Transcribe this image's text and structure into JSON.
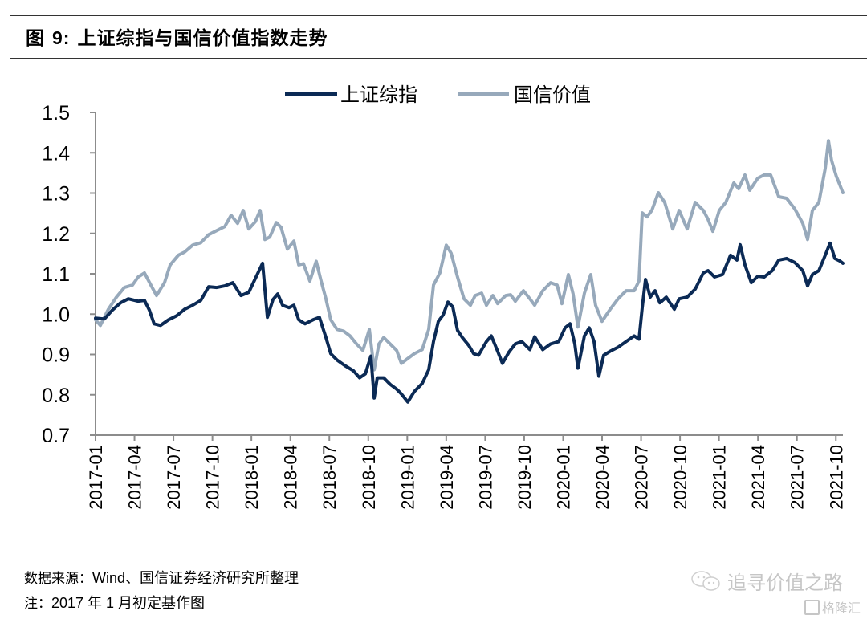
{
  "figure": {
    "title_prefix": "图",
    "title_number": "9:",
    "title_text": "上证综指与国信价值指数走势"
  },
  "footer": {
    "source_label": "数据来源：",
    "source_text": "Wind、国信证券经济研究所整理",
    "note_label": "注：",
    "note_text": "2017 年 1 月初定基作图"
  },
  "watermark": {
    "wechat_text": "追寻价值之路",
    "brand_text": "格隆汇"
  },
  "icons": {
    "wechat": "wechat-icon",
    "brand": "gelonghui-logo-icon"
  },
  "colors": {
    "sse": "#0b2a55",
    "guoxin": "#97a9bb",
    "axis": "#8c8c8c"
  },
  "chart_data": {
    "type": "line",
    "title": "上证综指与国信价值指数走势",
    "xlabel": "",
    "ylabel": "",
    "x_unit": "months since 2017-01",
    "xlim": [
      0,
      57.5
    ],
    "ylim": [
      0.7,
      1.5
    ],
    "yticks": [
      "1.5",
      "1.4",
      "1.3",
      "1.2",
      "1.1",
      "1.0",
      "0.9",
      "0.8",
      "0.7"
    ],
    "ytick_values": [
      1.5,
      1.4,
      1.3,
      1.2,
      1.1,
      1.0,
      0.9,
      0.8,
      0.7
    ],
    "xticks": [
      "2017-01",
      "2017-04",
      "2017-07",
      "2017-10",
      "2018-01",
      "2018-04",
      "2018-07",
      "2018-10",
      "2019-01",
      "2019-04",
      "2019-07",
      "2019-10",
      "2020-01",
      "2020-04",
      "2020-07",
      "2020-10",
      "2021-01",
      "2021-04",
      "2021-07",
      "2021-10"
    ],
    "xtick_values": [
      0,
      3,
      6,
      9,
      12,
      15,
      18,
      21,
      24,
      27,
      30,
      33,
      36,
      39,
      42,
      45,
      48,
      51,
      54,
      57
    ],
    "grid": false,
    "legend_position": "top-center",
    "series": [
      {
        "name": "上证综指",
        "color": "#0b2a55",
        "points": [
          [
            0,
            0.99
          ],
          [
            0.68,
            0.988
          ],
          [
            1.3,
            1.01
          ],
          [
            1.92,
            1.028
          ],
          [
            2.53,
            1.038
          ],
          [
            3.28,
            1.032
          ],
          [
            3.77,
            1.034
          ],
          [
            4.14,
            1.01
          ],
          [
            4.51,
            0.976
          ],
          [
            5.0,
            0.972
          ],
          [
            5.62,
            0.986
          ],
          [
            6.24,
            0.996
          ],
          [
            6.86,
            1.012
          ],
          [
            7.48,
            1.022
          ],
          [
            8.1,
            1.034
          ],
          [
            8.71,
            1.068
          ],
          [
            9.33,
            1.066
          ],
          [
            9.95,
            1.07
          ],
          [
            10.57,
            1.078
          ],
          [
            11.19,
            1.046
          ],
          [
            11.8,
            1.054
          ],
          [
            12.3,
            1.088
          ],
          [
            12.86,
            1.126
          ],
          [
            13.23,
            0.992
          ],
          [
            13.66,
            1.036
          ],
          [
            14.03,
            1.05
          ],
          [
            14.4,
            1.022
          ],
          [
            14.9,
            1.016
          ],
          [
            15.27,
            1.022
          ],
          [
            15.64,
            0.986
          ],
          [
            16.13,
            0.976
          ],
          [
            16.75,
            0.986
          ],
          [
            17.24,
            0.992
          ],
          [
            17.74,
            0.942
          ],
          [
            18.11,
            0.902
          ],
          [
            18.6,
            0.886
          ],
          [
            19.22,
            0.872
          ],
          [
            19.84,
            0.86
          ],
          [
            20.33,
            0.842
          ],
          [
            20.77,
            0.852
          ],
          [
            21.2,
            0.896
          ],
          [
            21.45,
            0.792
          ],
          [
            21.69,
            0.842
          ],
          [
            22.19,
            0.842
          ],
          [
            22.68,
            0.826
          ],
          [
            23.18,
            0.814
          ],
          [
            23.55,
            0.802
          ],
          [
            24.04,
            0.782
          ],
          [
            24.54,
            0.808
          ],
          [
            25.15,
            0.828
          ],
          [
            25.65,
            0.862
          ],
          [
            26.02,
            0.932
          ],
          [
            26.39,
            0.982
          ],
          [
            26.76,
            0.998
          ],
          [
            27.13,
            1.03
          ],
          [
            27.5,
            1.018
          ],
          [
            27.87,
            0.96
          ],
          [
            28.24,
            0.942
          ],
          [
            28.74,
            0.922
          ],
          [
            29.11,
            0.902
          ],
          [
            29.48,
            0.898
          ],
          [
            30.1,
            0.932
          ],
          [
            30.47,
            0.946
          ],
          [
            30.96,
            0.908
          ],
          [
            31.33,
            0.878
          ],
          [
            31.83,
            0.906
          ],
          [
            32.32,
            0.926
          ],
          [
            32.82,
            0.932
          ],
          [
            33.44,
            0.912
          ],
          [
            33.81,
            0.944
          ],
          [
            34.43,
            0.912
          ],
          [
            35.04,
            0.926
          ],
          [
            35.66,
            0.932
          ],
          [
            36.15,
            0.966
          ],
          [
            36.53,
            0.976
          ],
          [
            36.9,
            0.926
          ],
          [
            37.14,
            0.866
          ],
          [
            37.64,
            0.946
          ],
          [
            38.01,
            0.966
          ],
          [
            38.38,
            0.932
          ],
          [
            38.75,
            0.846
          ],
          [
            39.12,
            0.898
          ],
          [
            39.62,
            0.908
          ],
          [
            40.23,
            0.918
          ],
          [
            40.85,
            0.932
          ],
          [
            41.47,
            0.946
          ],
          [
            41.84,
            0.938
          ],
          [
            42.09,
            1.016
          ],
          [
            42.34,
            1.086
          ],
          [
            42.71,
            1.042
          ],
          [
            43.08,
            1.058
          ],
          [
            43.45,
            1.028
          ],
          [
            43.94,
            1.042
          ],
          [
            44.56,
            1.012
          ],
          [
            44.93,
            1.038
          ],
          [
            45.55,
            1.042
          ],
          [
            46.17,
            1.062
          ],
          [
            46.79,
            1.102
          ],
          [
            47.16,
            1.108
          ],
          [
            47.65,
            1.092
          ],
          [
            48.27,
            1.098
          ],
          [
            48.89,
            1.146
          ],
          [
            49.38,
            1.134
          ],
          [
            49.63,
            1.172
          ],
          [
            50.0,
            1.122
          ],
          [
            50.49,
            1.078
          ],
          [
            50.99,
            1.094
          ],
          [
            51.48,
            1.092
          ],
          [
            52.1,
            1.108
          ],
          [
            52.6,
            1.134
          ],
          [
            53.21,
            1.138
          ],
          [
            53.83,
            1.128
          ],
          [
            54.45,
            1.108
          ],
          [
            54.82,
            1.07
          ],
          [
            55.19,
            1.098
          ],
          [
            55.69,
            1.108
          ],
          [
            56.18,
            1.146
          ],
          [
            56.55,
            1.176
          ],
          [
            56.92,
            1.138
          ],
          [
            57.29,
            1.132
          ],
          [
            57.54,
            1.126
          ]
        ]
      },
      {
        "name": "国信价值",
        "color": "#97a9bb",
        "points": [
          [
            0,
            0.986
          ],
          [
            0.37,
            0.972
          ],
          [
            0.99,
            1.012
          ],
          [
            1.61,
            1.042
          ],
          [
            2.22,
            1.066
          ],
          [
            2.84,
            1.072
          ],
          [
            3.28,
            1.092
          ],
          [
            3.77,
            1.102
          ],
          [
            4.26,
            1.072
          ],
          [
            4.7,
            1.046
          ],
          [
            5.31,
            1.078
          ],
          [
            5.75,
            1.122
          ],
          [
            6.37,
            1.146
          ],
          [
            6.86,
            1.154
          ],
          [
            7.48,
            1.171
          ],
          [
            8.1,
            1.177
          ],
          [
            8.71,
            1.197
          ],
          [
            9.33,
            1.207
          ],
          [
            9.95,
            1.217
          ],
          [
            10.44,
            1.245
          ],
          [
            10.94,
            1.225
          ],
          [
            11.37,
            1.257
          ],
          [
            11.8,
            1.211
          ],
          [
            12.3,
            1.229
          ],
          [
            12.67,
            1.257
          ],
          [
            13.04,
            1.185
          ],
          [
            13.41,
            1.191
          ],
          [
            13.91,
            1.227
          ],
          [
            14.28,
            1.215
          ],
          [
            14.77,
            1.161
          ],
          [
            15.27,
            1.181
          ],
          [
            15.64,
            1.122
          ],
          [
            16.01,
            1.125
          ],
          [
            16.5,
            1.082
          ],
          [
            16.99,
            1.131
          ],
          [
            17.37,
            1.082
          ],
          [
            17.74,
            1.038
          ],
          [
            18.11,
            0.986
          ],
          [
            18.6,
            0.962
          ],
          [
            19.1,
            0.958
          ],
          [
            19.59,
            0.946
          ],
          [
            20.09,
            0.926
          ],
          [
            20.58,
            0.91
          ],
          [
            21.08,
            0.962
          ],
          [
            21.45,
            0.862
          ],
          [
            21.82,
            0.926
          ],
          [
            22.19,
            0.942
          ],
          [
            22.68,
            0.926
          ],
          [
            23.18,
            0.91
          ],
          [
            23.55,
            0.878
          ],
          [
            24.04,
            0.89
          ],
          [
            24.54,
            0.902
          ],
          [
            25.15,
            0.912
          ],
          [
            25.65,
            0.962
          ],
          [
            26.02,
            1.072
          ],
          [
            26.51,
            1.102
          ],
          [
            27.0,
            1.171
          ],
          [
            27.38,
            1.151
          ],
          [
            27.87,
            1.092
          ],
          [
            28.37,
            1.038
          ],
          [
            28.86,
            1.022
          ],
          [
            29.23,
            1.046
          ],
          [
            29.73,
            1.052
          ],
          [
            30.1,
            1.022
          ],
          [
            30.59,
            1.046
          ],
          [
            30.96,
            1.026
          ],
          [
            31.58,
            1.046
          ],
          [
            31.95,
            1.048
          ],
          [
            32.32,
            1.032
          ],
          [
            32.94,
            1.058
          ],
          [
            33.44,
            1.038
          ],
          [
            33.81,
            1.022
          ],
          [
            34.43,
            1.058
          ],
          [
            35.04,
            1.078
          ],
          [
            35.54,
            1.072
          ],
          [
            35.91,
            1.026
          ],
          [
            36.4,
            1.098
          ],
          [
            36.77,
            1.05
          ],
          [
            37.14,
            0.968
          ],
          [
            37.64,
            1.052
          ],
          [
            38.13,
            1.098
          ],
          [
            38.5,
            1.022
          ],
          [
            38.99,
            0.982
          ],
          [
            39.62,
            1.012
          ],
          [
            40.23,
            1.038
          ],
          [
            40.85,
            1.058
          ],
          [
            41.47,
            1.058
          ],
          [
            41.84,
            1.082
          ],
          [
            42.09,
            1.251
          ],
          [
            42.46,
            1.241
          ],
          [
            42.83,
            1.257
          ],
          [
            43.33,
            1.301
          ],
          [
            43.82,
            1.277
          ],
          [
            44.44,
            1.211
          ],
          [
            44.93,
            1.257
          ],
          [
            45.55,
            1.211
          ],
          [
            46.17,
            1.277
          ],
          [
            46.79,
            1.257
          ],
          [
            47.16,
            1.235
          ],
          [
            47.53,
            1.205
          ],
          [
            48.02,
            1.257
          ],
          [
            48.52,
            1.277
          ],
          [
            49.14,
            1.325
          ],
          [
            49.51,
            1.311
          ],
          [
            50.0,
            1.345
          ],
          [
            50.37,
            1.307
          ],
          [
            50.99,
            1.337
          ],
          [
            51.48,
            1.345
          ],
          [
            51.98,
            1.345
          ],
          [
            52.6,
            1.291
          ],
          [
            53.21,
            1.287
          ],
          [
            53.83,
            1.261
          ],
          [
            54.45,
            1.225
          ],
          [
            54.82,
            1.185
          ],
          [
            55.19,
            1.257
          ],
          [
            55.69,
            1.277
          ],
          [
            56.18,
            1.361
          ],
          [
            56.43,
            1.43
          ],
          [
            56.67,
            1.381
          ],
          [
            57.04,
            1.341
          ],
          [
            57.29,
            1.321
          ],
          [
            57.54,
            1.301
          ]
        ]
      }
    ]
  }
}
